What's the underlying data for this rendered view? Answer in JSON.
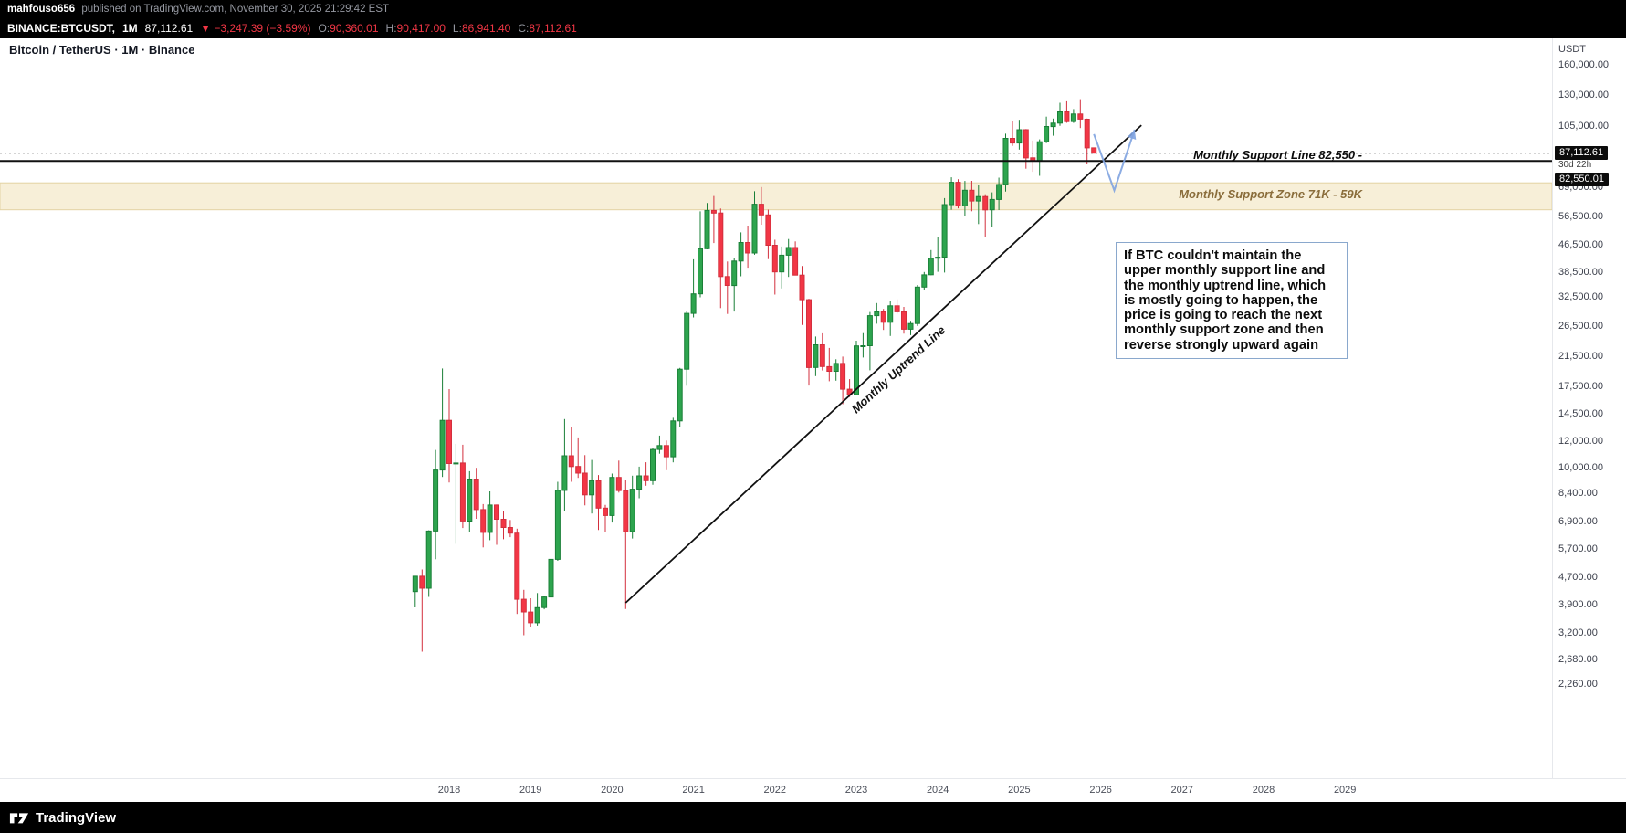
{
  "header": {
    "publisher": "mahfouso656",
    "published_suffix": "published on TradingView.com, November 30, 2025 21:29:42 EST",
    "symbol_bar": {
      "symbol": "BINANCE:BTCUSDT,",
      "interval": "1M",
      "price": "87,112.61",
      "change": "▼ −3,247.39 (−3.59%)",
      "ohlc": [
        {
          "label": "O:",
          "value": "90,360.01"
        },
        {
          "label": "H:",
          "value": "90,417.00"
        },
        {
          "label": "L:",
          "value": "86,941.40"
        },
        {
          "label": "C:",
          "value": "87,112.61"
        }
      ]
    }
  },
  "chart_title": "Bitcoin / TetherUS · 1M · Binance",
  "axis": {
    "currency": "USDT",
    "price_ticks": [
      {
        "v": 160000,
        "t": "160,000.00"
      },
      {
        "v": 130000,
        "t": "130,000.00"
      },
      {
        "v": 105000,
        "t": "105,000.00"
      },
      {
        "v": 69000,
        "t": "69,000.00"
      },
      {
        "v": 56500,
        "t": "56,500.00"
      },
      {
        "v": 46500,
        "t": "46,500.00"
      },
      {
        "v": 38500,
        "t": "38,500.00"
      },
      {
        "v": 32500,
        "t": "32,500.00"
      },
      {
        "v": 26500,
        "t": "26,500.00"
      },
      {
        "v": 21500,
        "t": "21,500.00"
      },
      {
        "v": 17500,
        "t": "17,500.00"
      },
      {
        "v": 14500,
        "t": "14,500.00"
      },
      {
        "v": 12000,
        "t": "12,000.00"
      },
      {
        "v": 10000,
        "t": "10,000.00"
      },
      {
        "v": 8400,
        "t": "8,400.00"
      },
      {
        "v": 6900,
        "t": "6,900.00"
      },
      {
        "v": 5700,
        "t": "5,700.00"
      },
      {
        "v": 4700,
        "t": "4,700.00"
      },
      {
        "v": 3900,
        "t": "3,900.00"
      },
      {
        "v": 3200,
        "t": "3,200.00"
      },
      {
        "v": 2680,
        "t": "2,680.00"
      },
      {
        "v": 2260,
        "t": "2,260.00"
      }
    ],
    "years": [
      "2018",
      "2019",
      "2020",
      "2021",
      "2022",
      "2023",
      "2024",
      "2025",
      "2026",
      "2027",
      "2028",
      "2029"
    ]
  },
  "badges": {
    "current_price": "87,112.61",
    "countdown": "30d 22h",
    "support_price": "82,550.01"
  },
  "annotations": {
    "support_line_label": "Monthly Support Line 82,550 -",
    "support_zone_label": "Monthly Support Zone 71K - 59K",
    "uptrend_label": "Monthly Uptrend Line",
    "note_text": "If BTC couldn't maintain the upper monthly support line and the monthly uptrend line, which is mostly going to happen, the price is going to reach the next monthly support zone and then reverse strongly upward again"
  },
  "footer": {
    "brand": "TradingView"
  },
  "colors": {
    "up": "#2da44e",
    "up_border": "#1a7f37",
    "down": "#f23645",
    "down_border": "#d32f3d",
    "zone_fill": "#f7efd8",
    "zone_border": "#e3d3a3",
    "trendline": "#111111",
    "support_line": "#111111",
    "last_price_line": "#555555",
    "projection": "#7fa3e0",
    "badge_bg": "#0c0c0c",
    "accent_red": "#f23645"
  },
  "chart_data": {
    "type": "candlestick",
    "title": "Bitcoin / TetherUS · 1M · Binance",
    "symbol": "BTCUSDT",
    "exchange": "Binance",
    "timeframe": "1M",
    "scale": "log",
    "grid": false,
    "ylim": [
      2260,
      160000
    ],
    "current_price": 87112.61,
    "ohlc_order": [
      "month",
      "open",
      "high",
      "low",
      "close"
    ],
    "candles": [
      [
        "2017-08",
        4261,
        4745,
        3822,
        4735
      ],
      [
        "2017-09",
        4735,
        4960,
        2817,
        4360
      ],
      [
        "2017-10",
        4360,
        6498,
        4110,
        6463
      ],
      [
        "2017-11",
        6463,
        11300,
        5325,
        9838
      ],
      [
        "2017-12",
        9838,
        19798,
        9380,
        13850
      ],
      [
        "2018-01",
        13850,
        17176,
        9035,
        10285
      ],
      [
        "2018-02",
        10285,
        11786,
        5920,
        10325
      ],
      [
        "2018-03",
        10325,
        11710,
        6600,
        6926
      ],
      [
        "2018-04",
        6926,
        9759,
        6430,
        9246
      ],
      [
        "2018-05",
        9246,
        9990,
        7032,
        7494
      ],
      [
        "2018-06",
        7494,
        7780,
        5777,
        6404
      ],
      [
        "2018-07",
        6404,
        8491,
        6070,
        7735
      ],
      [
        "2018-08",
        7735,
        7760,
        5880,
        7011
      ],
      [
        "2018-09",
        7011,
        7410,
        6111,
        6626
      ],
      [
        "2018-10",
        6626,
        6976,
        6200,
        6371
      ],
      [
        "2018-11",
        6371,
        6572,
        3652,
        4041
      ],
      [
        "2018-12",
        4041,
        4312,
        3156,
        3702
      ],
      [
        "2019-01",
        3702,
        4069,
        3349,
        3437
      ],
      [
        "2019-02",
        3437,
        4219,
        3373,
        3816
      ],
      [
        "2019-03",
        3816,
        4140,
        3773,
        4105
      ],
      [
        "2019-04",
        4105,
        5627,
        4054,
        5320
      ],
      [
        "2019-05",
        5320,
        9074,
        5267,
        8555
      ],
      [
        "2019-06",
        8555,
        13970,
        7432,
        10854
      ],
      [
        "2019-07",
        10854,
        13184,
        9071,
        10080
      ],
      [
        "2019-08",
        10080,
        12316,
        9321,
        9630
      ],
      [
        "2019-09",
        9630,
        10898,
        7714,
        8290
      ],
      [
        "2019-10",
        8290,
        10540,
        7293,
        9140
      ],
      [
        "2019-11",
        9140,
        9505,
        6515,
        7569
      ],
      [
        "2019-12",
        7569,
        7743,
        6425,
        7193
      ],
      [
        "2020-01",
        7193,
        9599,
        6853,
        9350
      ],
      [
        "2020-02",
        9350,
        10500,
        8421,
        8543
      ],
      [
        "2020-03",
        8543,
        9188,
        3782,
        6438
      ],
      [
        "2020-04",
        6438,
        9460,
        6140,
        8620
      ],
      [
        "2020-05",
        8620,
        10067,
        8101,
        9448
      ],
      [
        "2020-06",
        9448,
        10380,
        8830,
        9138
      ],
      [
        "2020-07",
        9138,
        11444,
        8893,
        11333
      ],
      [
        "2020-08",
        11333,
        12468,
        11010,
        11644
      ],
      [
        "2020-09",
        11644,
        12050,
        9825,
        10776
      ],
      [
        "2020-10",
        10776,
        14100,
        10371,
        13797
      ],
      [
        "2020-11",
        13797,
        19863,
        13195,
        19695
      ],
      [
        "2020-12",
        19695,
        29300,
        17572,
        28923
      ],
      [
        "2021-01",
        28923,
        41950,
        28130,
        33092
      ],
      [
        "2021-02",
        33092,
        58352,
        32296,
        45135
      ],
      [
        "2021-03",
        45135,
        61844,
        44950,
        58740
      ],
      [
        "2021-04",
        58740,
        64854,
        46930,
        57694
      ],
      [
        "2021-05",
        57694,
        59500,
        30000,
        37253
      ],
      [
        "2021-06",
        37253,
        41330,
        28805,
        35041
      ],
      [
        "2021-07",
        35041,
        42448,
        29278,
        41461
      ],
      [
        "2021-08",
        41461,
        50500,
        37332,
        47100
      ],
      [
        "2021-09",
        47100,
        52920,
        39600,
        43824
      ],
      [
        "2021-10",
        43824,
        67000,
        43283,
        61299
      ],
      [
        "2021-11",
        61299,
        69000,
        53256,
        56950
      ],
      [
        "2021-12",
        56950,
        59053,
        42000,
        46216
      ],
      [
        "2022-01",
        46216,
        47990,
        32917,
        38466
      ],
      [
        "2022-02",
        38466,
        45821,
        34322,
        43160
      ],
      [
        "2022-03",
        43160,
        48240,
        37155,
        45510
      ],
      [
        "2022-04",
        45510,
        47448,
        37550,
        37630
      ],
      [
        "2022-05",
        37630,
        40071,
        26700,
        31784
      ],
      [
        "2022-06",
        31784,
        31982,
        17593,
        19924
      ],
      [
        "2022-07",
        19924,
        24668,
        18781,
        23290
      ],
      [
        "2022-08",
        23290,
        25211,
        19521,
        20048
      ],
      [
        "2022-09",
        20048,
        22799,
        18125,
        19416
      ],
      [
        "2022-10",
        19416,
        21085,
        18190,
        20490
      ],
      [
        "2022-11",
        20490,
        21480,
        15476,
        17163
      ],
      [
        "2022-12",
        17163,
        18387,
        16256,
        16542
      ],
      [
        "2023-01",
        16542,
        23960,
        16499,
        23125
      ],
      [
        "2023-02",
        23125,
        25250,
        21351,
        23141
      ],
      [
        "2023-03",
        23141,
        29184,
        19549,
        28465
      ],
      [
        "2023-04",
        28465,
        31050,
        26942,
        29233
      ],
      [
        "2023-05",
        29233,
        29820,
        25811,
        27210
      ],
      [
        "2023-06",
        27210,
        31431,
        24756,
        30472
      ],
      [
        "2023-07",
        30472,
        31850,
        28855,
        29230
      ],
      [
        "2023-08",
        29230,
        30230,
        25166,
        25932
      ],
      [
        "2023-09",
        25932,
        27483,
        24900,
        26962
      ],
      [
        "2023-10",
        26962,
        35150,
        26538,
        34656
      ],
      [
        "2023-11",
        34656,
        38450,
        34065,
        37712
      ],
      [
        "2023-12",
        37712,
        44700,
        37615,
        42265
      ],
      [
        "2024-01",
        42265,
        48970,
        38501,
        42569
      ],
      [
        "2024-02",
        42569,
        63933,
        38300,
        61130
      ],
      [
        "2024-03",
        61130,
        73777,
        59005,
        71280
      ],
      [
        "2024-04",
        71280,
        72797,
        59600,
        60622
      ],
      [
        "2024-05",
        60622,
        71946,
        56500,
        67491
      ],
      [
        "2024-06",
        67491,
        71997,
        58402,
        62668
      ],
      [
        "2024-07",
        62668,
        70000,
        53485,
        64619
      ],
      [
        "2024-08",
        64619,
        65659,
        49000,
        58969
      ],
      [
        "2024-09",
        58969,
        66500,
        52530,
        63329
      ],
      [
        "2024-10",
        63329,
        73620,
        58895,
        70215
      ],
      [
        "2024-11",
        70215,
        99588,
        66835,
        96449
      ],
      [
        "2024-12",
        96449,
        108353,
        91530,
        93429
      ],
      [
        "2025-01",
        93429,
        109588,
        89256,
        102405
      ],
      [
        "2025-02",
        102405,
        102800,
        78258,
        84349
      ],
      [
        "2025-03",
        84349,
        95000,
        76606,
        82548
      ],
      [
        "2025-04",
        82548,
        95768,
        74508,
        94207
      ],
      [
        "2025-05",
        94207,
        111980,
        93368,
        104638
      ],
      [
        "2025-06",
        104638,
        110530,
        98200,
        107135
      ],
      [
        "2025-07",
        107135,
        123218,
        105111,
        115758
      ],
      [
        "2025-08",
        115758,
        124474,
        107350,
        108236
      ],
      [
        "2025-09",
        108236,
        118000,
        107270,
        114056
      ],
      [
        "2025-10",
        114056,
        126296,
        103550,
        110080
      ],
      [
        "2025-11",
        110080,
        110550,
        80600,
        90360
      ],
      [
        "2025-12",
        90360,
        90417,
        86941,
        87112.61
      ]
    ],
    "drawings": {
      "support_line_price": 82550,
      "support_zone": {
        "top": 71000,
        "bottom": 59000
      },
      "uptrend_line": {
        "from_month": "2020-03",
        "from_price": 3945,
        "to_month": "2026-07",
        "to_price": 105600
      },
      "projection_arrow": [
        {
          "month": "2025-12",
          "price": 99300
        },
        {
          "month": "2026-03",
          "price": 67400
        },
        {
          "month": "2026-06",
          "price": 102400
        }
      ]
    }
  }
}
